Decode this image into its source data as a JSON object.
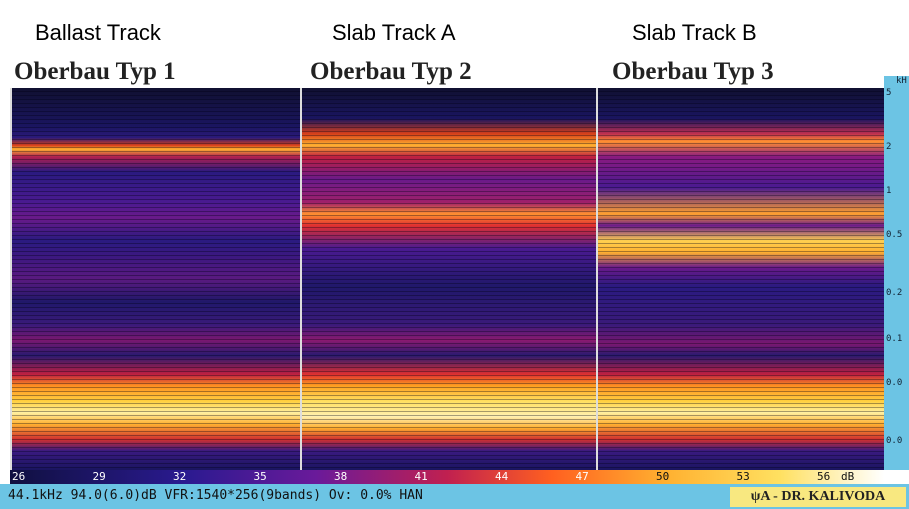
{
  "headings": [
    {
      "english": "Ballast Track",
      "german": "Oberbau Typ 1"
    },
    {
      "english": "Slab Track A",
      "german": "Oberbau Typ 2"
    },
    {
      "english": "Slab Track B",
      "german": "Oberbau Typ 3"
    }
  ],
  "frequency_axis": {
    "unit": "kH",
    "labels": [
      "5",
      "2",
      "1",
      "0.5",
      "0.2",
      "0.1",
      "0.0",
      "0.0"
    ]
  },
  "color_scale": {
    "labels": [
      26,
      29,
      32,
      35,
      38,
      41,
      44,
      47,
      50,
      53,
      56
    ],
    "unit": "dB"
  },
  "status_bar": {
    "text": "44.1kHz 94.0(6.0)dB VFR:1540*256(9bands) Ov: 0.0% HAN",
    "credit": "ψA - DR. KALIVODA"
  }
}
